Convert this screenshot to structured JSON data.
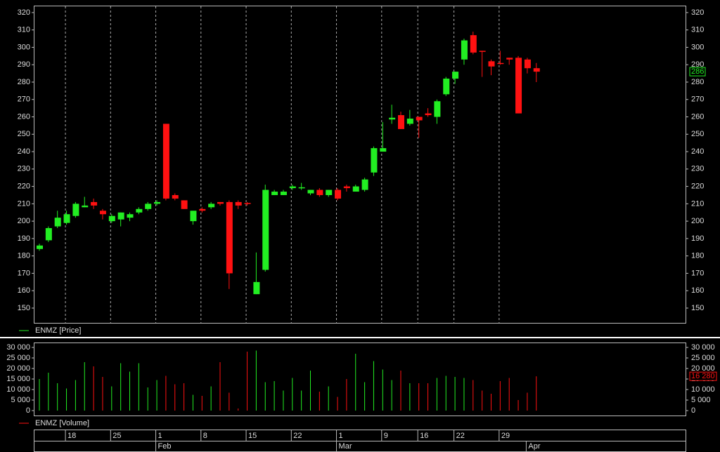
{
  "chart_data": [
    {
      "type": "candlestick",
      "legend": "ENMZ [Price]",
      "up_color": "#22ee22",
      "down_color": "#ff1111",
      "open": [
        184,
        189,
        197,
        199,
        203,
        208,
        211,
        206,
        200,
        201,
        202,
        205,
        207,
        210,
        256,
        215,
        212,
        200,
        207,
        208,
        211,
        211,
        211,
        210.5,
        158,
        172,
        215,
        215,
        219,
        219,
        216,
        218,
        215,
        218,
        220,
        217,
        218,
        228,
        240,
        258.5,
        261,
        256,
        260,
        262,
        260,
        273,
        282,
        293,
        307,
        298,
        292,
        291,
        294,
        294,
        293,
        288
      ],
      "high": [
        187,
        197,
        206,
        206,
        211,
        214,
        213,
        207,
        204,
        205,
        205,
        208,
        211,
        212,
        256,
        216,
        212,
        206,
        208,
        211,
        211,
        212,
        212,
        211,
        182,
        221,
        218,
        218,
        221,
        222,
        218,
        219,
        218,
        219,
        221,
        221,
        225,
        243,
        257,
        267,
        263,
        264,
        260,
        265,
        270,
        283,
        286,
        305,
        309,
        298,
        293,
        298,
        294,
        295,
        294,
        291
      ],
      "low": [
        183,
        188,
        196,
        198,
        202,
        208,
        207,
        201,
        199,
        197,
        200,
        204,
        206,
        209,
        212,
        212,
        207,
        198,
        205,
        207,
        209,
        161,
        207,
        209,
        158,
        171,
        215,
        215,
        218,
        218,
        215,
        214,
        214,
        212,
        217,
        217,
        217,
        226,
        240,
        256,
        253,
        255,
        248,
        260,
        256,
        272,
        279,
        290,
        296,
        283,
        284,
        290,
        290,
        262,
        285,
        280
      ],
      "close": [
        186,
        196,
        202,
        204,
        210,
        209,
        209,
        204,
        203,
        205,
        204,
        207,
        210,
        211,
        213,
        213,
        207,
        206,
        206,
        210,
        210,
        170,
        209,
        210,
        165,
        218,
        217,
        217,
        220,
        219.5,
        218,
        215,
        218,
        213,
        219,
        220,
        224,
        242,
        242,
        259.5,
        253,
        259,
        258,
        261,
        269,
        282,
        286,
        304,
        297,
        297.5,
        289,
        290.5,
        293,
        262,
        288,
        286
      ],
      "last_label": "286",
      "ylim": [
        141.5,
        324
      ],
      "yticks": [
        150,
        160,
        170,
        180,
        190,
        200,
        210,
        220,
        230,
        240,
        250,
        260,
        270,
        280,
        290,
        300,
        310,
        320
      ],
      "grid": true
    },
    {
      "type": "volume",
      "legend": "ENMZ [Volume]",
      "values": [
        15000,
        18000,
        13000,
        10500,
        14500,
        23000,
        21000,
        16000,
        11500,
        22500,
        18500,
        22500,
        11000,
        14500,
        16500,
        12500,
        13000,
        7500,
        7000,
        11500,
        23000,
        8500,
        1000,
        28000,
        28500,
        13500,
        14000,
        9500,
        15500,
        9500,
        19000,
        9000,
        11500,
        6500,
        15000,
        27000,
        13500,
        23500,
        19500,
        14500,
        19000,
        13000,
        13000,
        13000,
        15500,
        16500,
        16000,
        15500,
        14500,
        9500,
        8000,
        14000,
        15500,
        5000,
        8500,
        16280
      ],
      "last_label": "16 280",
      "ylim": [
        -2333,
        32333
      ],
      "yticks": [
        {
          "value": 0,
          "label": "0"
        },
        {
          "value": 5000,
          "label": "5 000"
        },
        {
          "value": 10000,
          "label": "10 000"
        },
        {
          "value": 15000,
          "label": "15 000"
        },
        {
          "value": 20000,
          "label": "20 000"
        },
        {
          "value": 25000,
          "label": "25 000"
        },
        {
          "value": 30000,
          "label": "30 000"
        }
      ],
      "categories": [
        null,
        null,
        null,
        "18",
        null,
        null,
        null,
        null,
        "25",
        null,
        null,
        null,
        null,
        "1",
        null,
        null,
        null,
        null,
        "8",
        null,
        null,
        null,
        null,
        "15",
        null,
        null,
        null,
        null,
        "22",
        null,
        null,
        null,
        null,
        "1",
        null,
        null,
        null,
        null,
        "9",
        null,
        null,
        null,
        "16",
        null,
        null,
        null,
        "22",
        null,
        null,
        null,
        null,
        "29",
        null,
        null,
        null,
        null
      ],
      "months": [
        null,
        null,
        null,
        null,
        null,
        null,
        null,
        null,
        null,
        null,
        null,
        null,
        null,
        "Feb",
        null,
        null,
        null,
        null,
        null,
        null,
        null,
        null,
        null,
        null,
        null,
        null,
        null,
        null,
        null,
        null,
        null,
        null,
        null,
        "Mar",
        null,
        null,
        null,
        null,
        null,
        null,
        null,
        null,
        null,
        null,
        null,
        null,
        null,
        null,
        null,
        null,
        null,
        null,
        null,
        null,
        "Apr",
        null
      ]
    }
  ]
}
